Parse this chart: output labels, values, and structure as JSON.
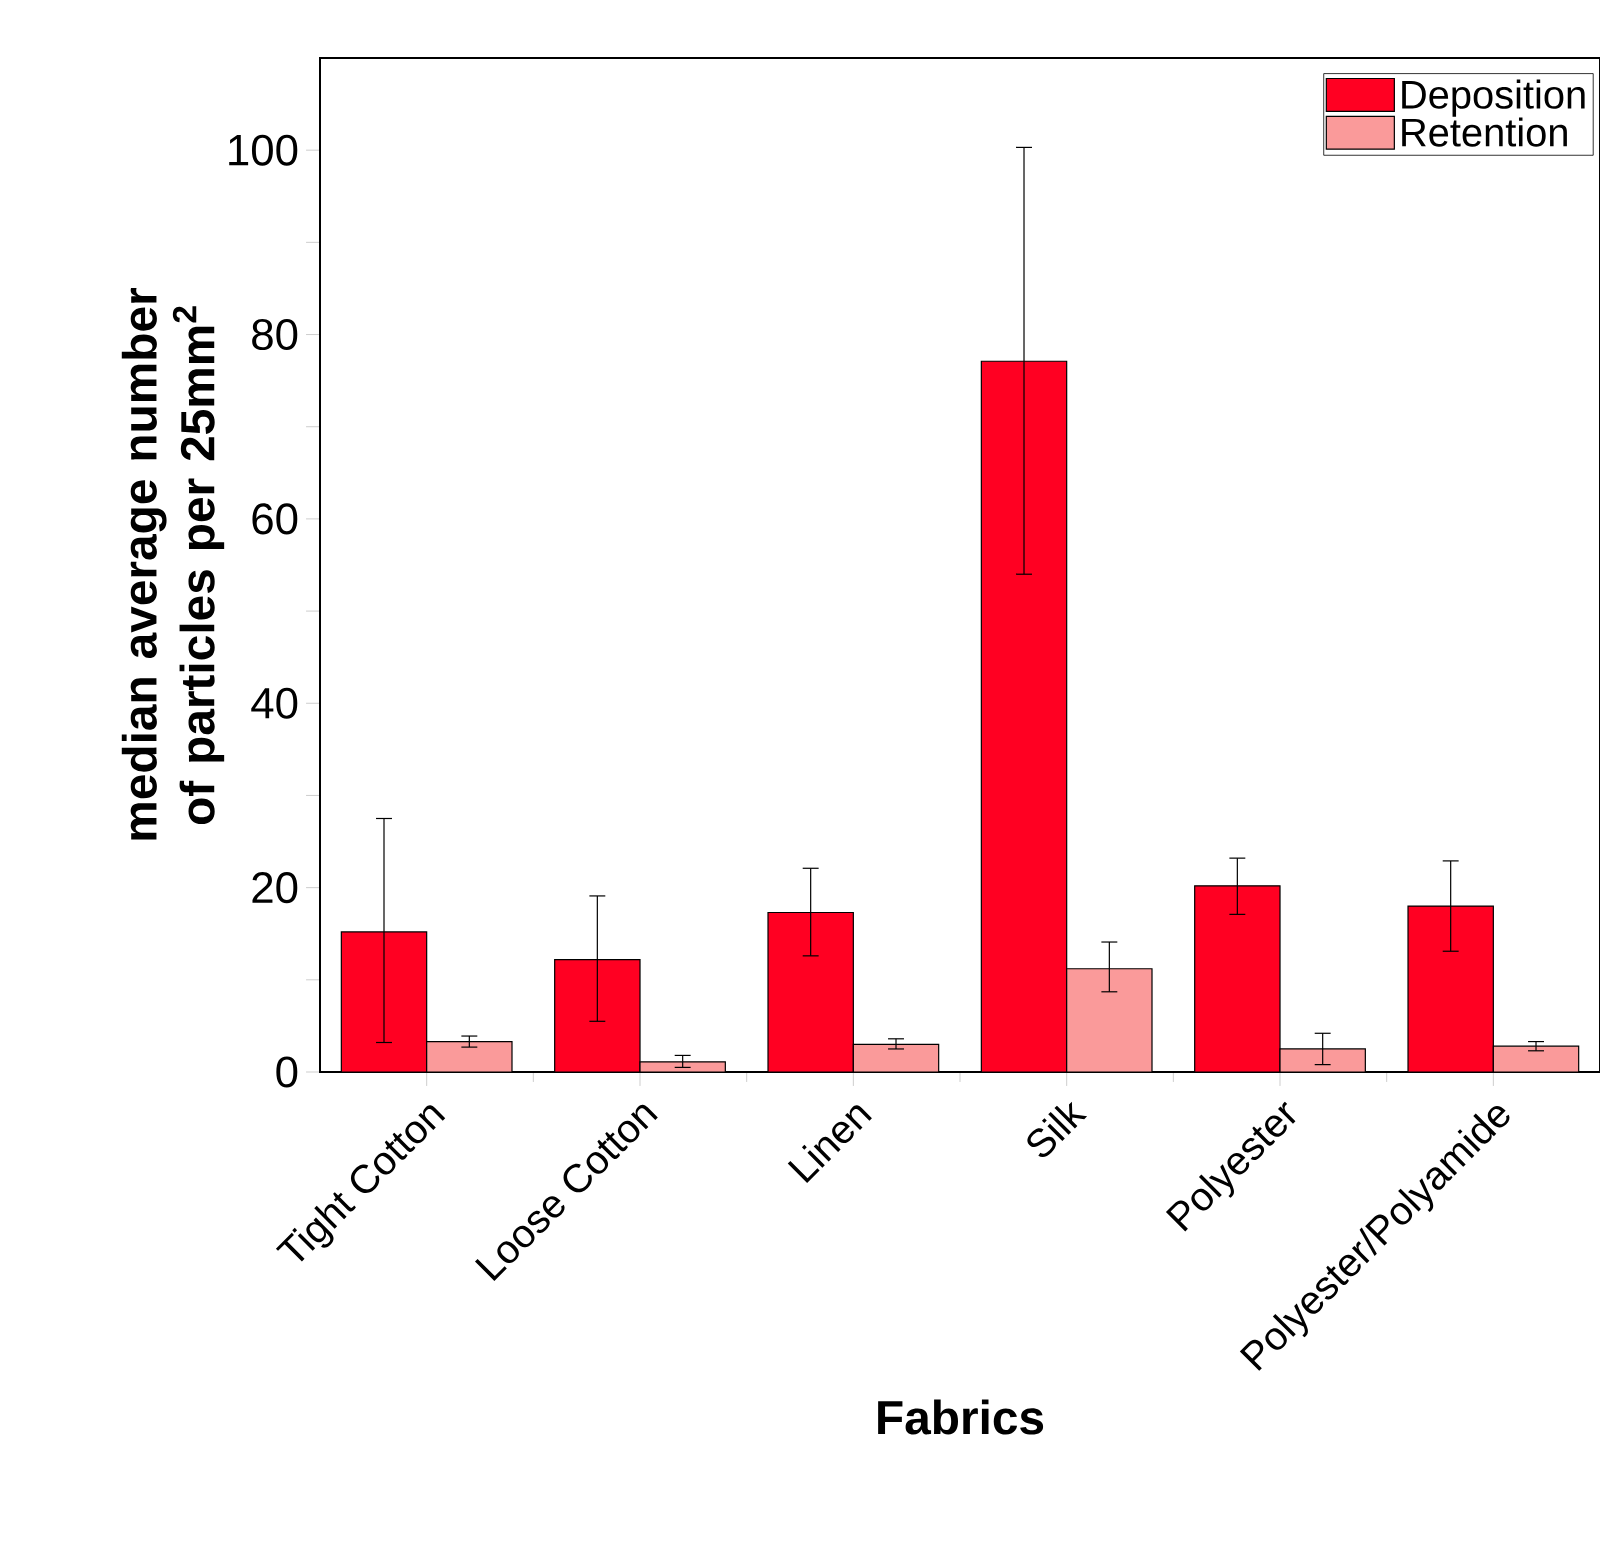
{
  "chart_data": {
    "type": "bar",
    "xlabel": "Fabrics",
    "ylabel": "median average number of particles per 25mm$^{2}$",
    "categories": [
      "Tight Cotton",
      "Loose Cotton",
      "Linen",
      "Silk",
      "Polyester",
      "Polyester/Polyamide"
    ],
    "series": [
      {
        "name": "Deposition",
        "color": "#ff0022",
        "values": [
          15.2,
          12.2,
          17.3,
          77.1,
          20.2,
          18.0
        ],
        "errors": [
          [
            3.2,
            27.5
          ],
          [
            5.5,
            19.1
          ],
          [
            12.6,
            22.1
          ],
          [
            54.0,
            100.3
          ],
          [
            17.1,
            23.2
          ],
          [
            13.1,
            22.9
          ]
        ]
      },
      {
        "name": "Retention",
        "color": "#fa9a9a",
        "values": [
          3.3,
          1.1,
          3.0,
          11.2,
          2.5,
          2.8
        ],
        "errors": [
          [
            2.7,
            3.9
          ],
          [
            0.5,
            1.8
          ],
          [
            2.5,
            3.6
          ],
          [
            8.7,
            14.1
          ],
          [
            0.8,
            4.2
          ],
          [
            2.3,
            3.3
          ]
        ]
      }
    ],
    "ylim": [
      0,
      110
    ],
    "yticks": [
      0,
      {
        "value": 10,
        "label": null
      },
      20,
      {
        "value": 30,
        "label": null
      },
      40,
      {
        "value": 50,
        "label": null
      },
      60,
      {
        "value": 70,
        "label": null
      },
      80,
      {
        "value": 90,
        "label": null
      },
      100
    ],
    "legend": "top right"
  }
}
